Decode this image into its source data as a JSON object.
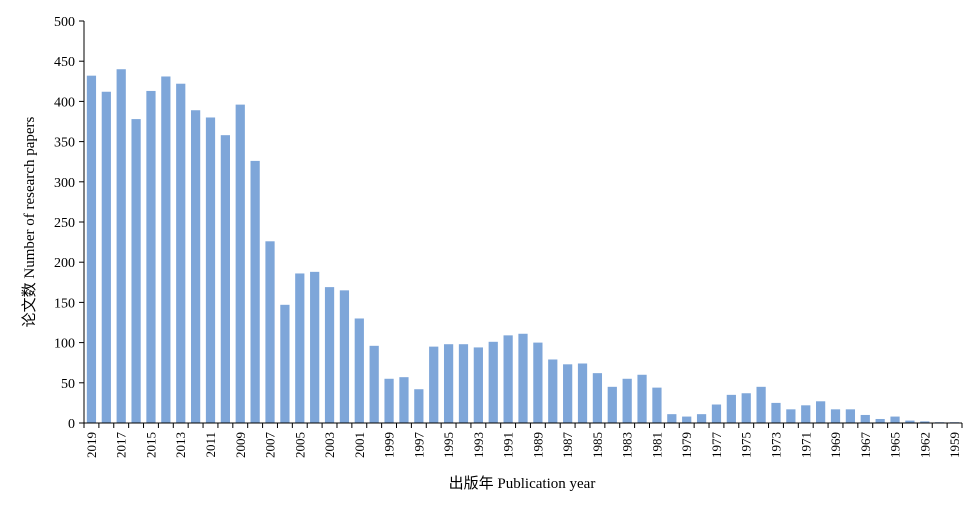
{
  "chart_data": {
    "type": "bar",
    "title": "",
    "xlabel": "出版年 Publication year",
    "ylabel": "论文数 Number of research papers",
    "ylim": [
      0,
      500
    ],
    "yticks": [
      0,
      50,
      100,
      150,
      200,
      250,
      300,
      350,
      400,
      450,
      500
    ],
    "grid": false,
    "legend": "none",
    "bar_color": "#7ea6d9",
    "categories": [
      "2019",
      "2018",
      "2017",
      "2016",
      "2015",
      "2014",
      "2013",
      "2012",
      "2011",
      "2010",
      "2009",
      "2008",
      "2007",
      "2006",
      "2005",
      "2004",
      "2003",
      "2002",
      "2001",
      "2000",
      "1999",
      "1998",
      "1997",
      "1996",
      "1995",
      "1994",
      "1993",
      "1992",
      "1991",
      "1990",
      "1989",
      "1988",
      "1987",
      "1986",
      "1985",
      "1984",
      "1983",
      "1982",
      "1981",
      "1980",
      "1979",
      "1978",
      "1977",
      "1976",
      "1975",
      "1974",
      "1973",
      "1972",
      "1971",
      "1970",
      "1969",
      "1968",
      "1967",
      "1966",
      "1965",
      "1964",
      "1962",
      "1961",
      "1959"
    ],
    "tick_labels": [
      "2019",
      "2017",
      "2015",
      "2013",
      "2011",
      "2009",
      "2007",
      "2005",
      "2003",
      "2001",
      "1999",
      "1997",
      "1995",
      "1993",
      "1991",
      "1989",
      "1987",
      "1985",
      "1983",
      "1981",
      "1979",
      "1977",
      "1975",
      "1973",
      "1971",
      "1969",
      "1967",
      "1965",
      "1962",
      "1959"
    ],
    "tick_label_indices": [
      0,
      2,
      4,
      6,
      8,
      10,
      12,
      14,
      16,
      18,
      20,
      22,
      24,
      26,
      28,
      30,
      32,
      34,
      36,
      38,
      40,
      42,
      44,
      46,
      48,
      50,
      52,
      54,
      56,
      58
    ],
    "values": [
      432,
      412,
      440,
      378,
      413,
      431,
      422,
      389,
      380,
      358,
      396,
      326,
      226,
      147,
      186,
      188,
      169,
      165,
      130,
      96,
      55,
      57,
      42,
      95,
      98,
      98,
      94,
      101,
      109,
      111,
      100,
      79,
      73,
      74,
      62,
      45,
      55,
      60,
      44,
      11,
      8,
      11,
      23,
      35,
      37,
      45,
      25,
      17,
      22,
      27,
      17,
      17,
      10,
      5,
      8,
      3,
      2,
      1,
      1
    ]
  }
}
